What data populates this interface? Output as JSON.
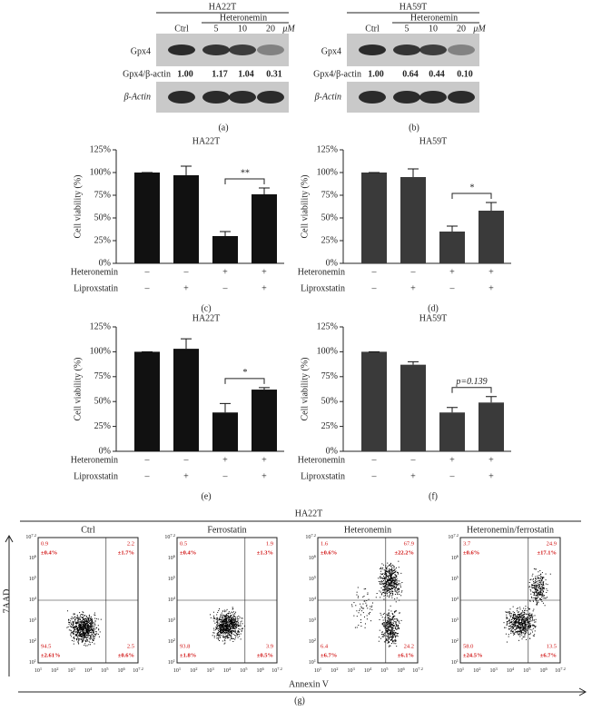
{
  "blots": [
    {
      "cell_line": "HA22T",
      "treatment": "Heteronemin",
      "lanes": [
        "Ctrl",
        "5",
        "10",
        "20"
      ],
      "unit": "μM",
      "target": "Gpx4",
      "ratio_label": "Gpx4/β-actin",
      "ratios": [
        "1.00",
        "1.17",
        "1.04",
        "0.31"
      ],
      "loading": "β-Actin",
      "panel": "(a)"
    },
    {
      "cell_line": "HA59T",
      "treatment": "Heteronemin",
      "lanes": [
        "Ctrl",
        "5",
        "10",
        "20"
      ],
      "unit": "μM",
      "target": "Gpx4",
      "ratio_label": "Gpx4/β-actin",
      "ratios": [
        "1.00",
        "0.64",
        "0.44",
        "0.10"
      ],
      "loading": "β-Actin",
      "panel": "(b)"
    }
  ],
  "chart_data": [
    {
      "type": "bar",
      "title": "HA22T",
      "y_label": "Cell viability (%)",
      "categories": [
        null,
        null,
        null,
        null
      ],
      "values": [
        100,
        97,
        30,
        76
      ],
      "errors": [
        0,
        10,
        5,
        7
      ],
      "color": "#111111",
      "ylim": [
        0,
        125
      ],
      "yticks": [
        {
          "value": 0,
          "label": "0%"
        },
        {
          "value": 25,
          "label": "25%"
        },
        {
          "value": 50,
          "label": "50%"
        },
        {
          "value": 75,
          "label": "75%"
        },
        {
          "value": 100,
          "label": "100%"
        },
        {
          "value": 125,
          "label": "125%"
        }
      ],
      "significance": "**",
      "treatments": [
        {
          "name": "Heteronemin",
          "signs": [
            "–",
            "–",
            "+",
            "+"
          ]
        },
        {
          "name": "Liproxstatin",
          "signs": [
            "–",
            "+",
            "–",
            "+"
          ]
        }
      ],
      "panel": "(c)"
    },
    {
      "type": "bar",
      "title": "HA59T",
      "y_label": "Cell viability (%)",
      "categories": [
        null,
        null,
        null,
        null
      ],
      "values": [
        100,
        95,
        35,
        58
      ],
      "errors": [
        0,
        9,
        6,
        9
      ],
      "color": "#3a3a3a",
      "ylim": [
        0,
        125
      ],
      "yticks": [
        {
          "value": 0,
          "label": "0%"
        },
        {
          "value": 25,
          "label": "25%"
        },
        {
          "value": 50,
          "label": "50%"
        },
        {
          "value": 75,
          "label": "75%"
        },
        {
          "value": 100,
          "label": "100%"
        },
        {
          "value": 125,
          "label": "125%"
        }
      ],
      "significance": "*",
      "treatments": [
        {
          "name": "Heteronemin",
          "signs": [
            "–",
            "–",
            "+",
            "+"
          ]
        },
        {
          "name": "Liproxstatin",
          "signs": [
            "–",
            "+",
            "–",
            "+"
          ]
        }
      ],
      "panel": "(d)"
    },
    {
      "type": "bar",
      "title": "HA22T",
      "y_label": "Cell viability (%)",
      "categories": [
        null,
        null,
        null,
        null
      ],
      "values": [
        100,
        103,
        39,
        62
      ],
      "errors": [
        0,
        10,
        9,
        2
      ],
      "color": "#111111",
      "ylim": [
        0,
        125
      ],
      "yticks": [
        {
          "value": 0,
          "label": "0%"
        },
        {
          "value": 25,
          "label": "25%"
        },
        {
          "value": 50,
          "label": "50%"
        },
        {
          "value": 75,
          "label": "75%"
        },
        {
          "value": 100,
          "label": "100%"
        },
        {
          "value": 125,
          "label": "125%"
        }
      ],
      "significance": "*",
      "treatments": [
        {
          "name": "Heteronemin",
          "signs": [
            "–",
            "–",
            "+",
            "+"
          ]
        },
        {
          "name": "Liproxstatin",
          "signs": [
            "–",
            "+",
            "–",
            "+"
          ]
        }
      ],
      "panel": "(e)"
    },
    {
      "type": "bar",
      "title": "HA59T",
      "y_label": "Cell viability (%)",
      "categories": [
        null,
        null,
        null,
        null
      ],
      "values": [
        100,
        87,
        39,
        49
      ],
      "errors": [
        0,
        3,
        5,
        6
      ],
      "color": "#3a3a3a",
      "ylim": [
        0,
        125
      ],
      "yticks": [
        {
          "value": 0,
          "label": "0%"
        },
        {
          "value": 25,
          "label": "25%"
        },
        {
          "value": 50,
          "label": "50%"
        },
        {
          "value": 75,
          "label": "75%"
        },
        {
          "value": 100,
          "label": "100%"
        },
        {
          "value": 125,
          "label": "125%"
        }
      ],
      "significance": "p=0.139",
      "treatments": [
        {
          "name": "Heteronemin",
          "signs": [
            "–",
            "–",
            "+",
            "+"
          ]
        },
        {
          "name": "Liproxstatin",
          "signs": [
            "–",
            "+",
            "–",
            "+"
          ]
        }
      ],
      "panel": "(f)"
    }
  ],
  "flow": {
    "title": "HA22T",
    "x_label": "Annexin V",
    "y_label": "7AAD",
    "tick_base": "10",
    "tick_exponents": [
      "1",
      "2",
      "3",
      "4",
      "5",
      "6",
      "7.2"
    ],
    "panel": "(g)",
    "plots": [
      {
        "name": "Ctrl",
        "quadrants": [
          {
            "value": "0.9",
            "sd": "±0.4%"
          },
          {
            "value": "2.2",
            "sd": "±1.7%"
          },
          {
            "value": "94.5",
            "sd": "±2.61%"
          },
          {
            "value": "2.5",
            "sd": "±0.6%"
          }
        ]
      },
      {
        "name": "Ferrostatin",
        "quadrants": [
          {
            "value": "0.5",
            "sd": "±0.4%"
          },
          {
            "value": "1.9",
            "sd": "±1.3%"
          },
          {
            "value": "93.8",
            "sd": "±1.8%"
          },
          {
            "value": "3.9",
            "sd": "±0.5%"
          }
        ]
      },
      {
        "name": "Heteronemin",
        "quadrants": [
          {
            "value": "1.6",
            "sd": "±0.6%"
          },
          {
            "value": "67.9",
            "sd": "±22.2%"
          },
          {
            "value": "6.4",
            "sd": "±6.7%"
          },
          {
            "value": "24.2",
            "sd": "±6.1%"
          }
        ]
      },
      {
        "name": "Heteronemin/ferrostatin",
        "quadrants": [
          {
            "value": "3.7",
            "sd": "±0.6%"
          },
          {
            "value": "24.9",
            "sd": "±17.1%"
          },
          {
            "value": "58.0",
            "sd": "±24.5%"
          },
          {
            "value": "13.5",
            "sd": "±6.7%"
          }
        ]
      }
    ]
  }
}
